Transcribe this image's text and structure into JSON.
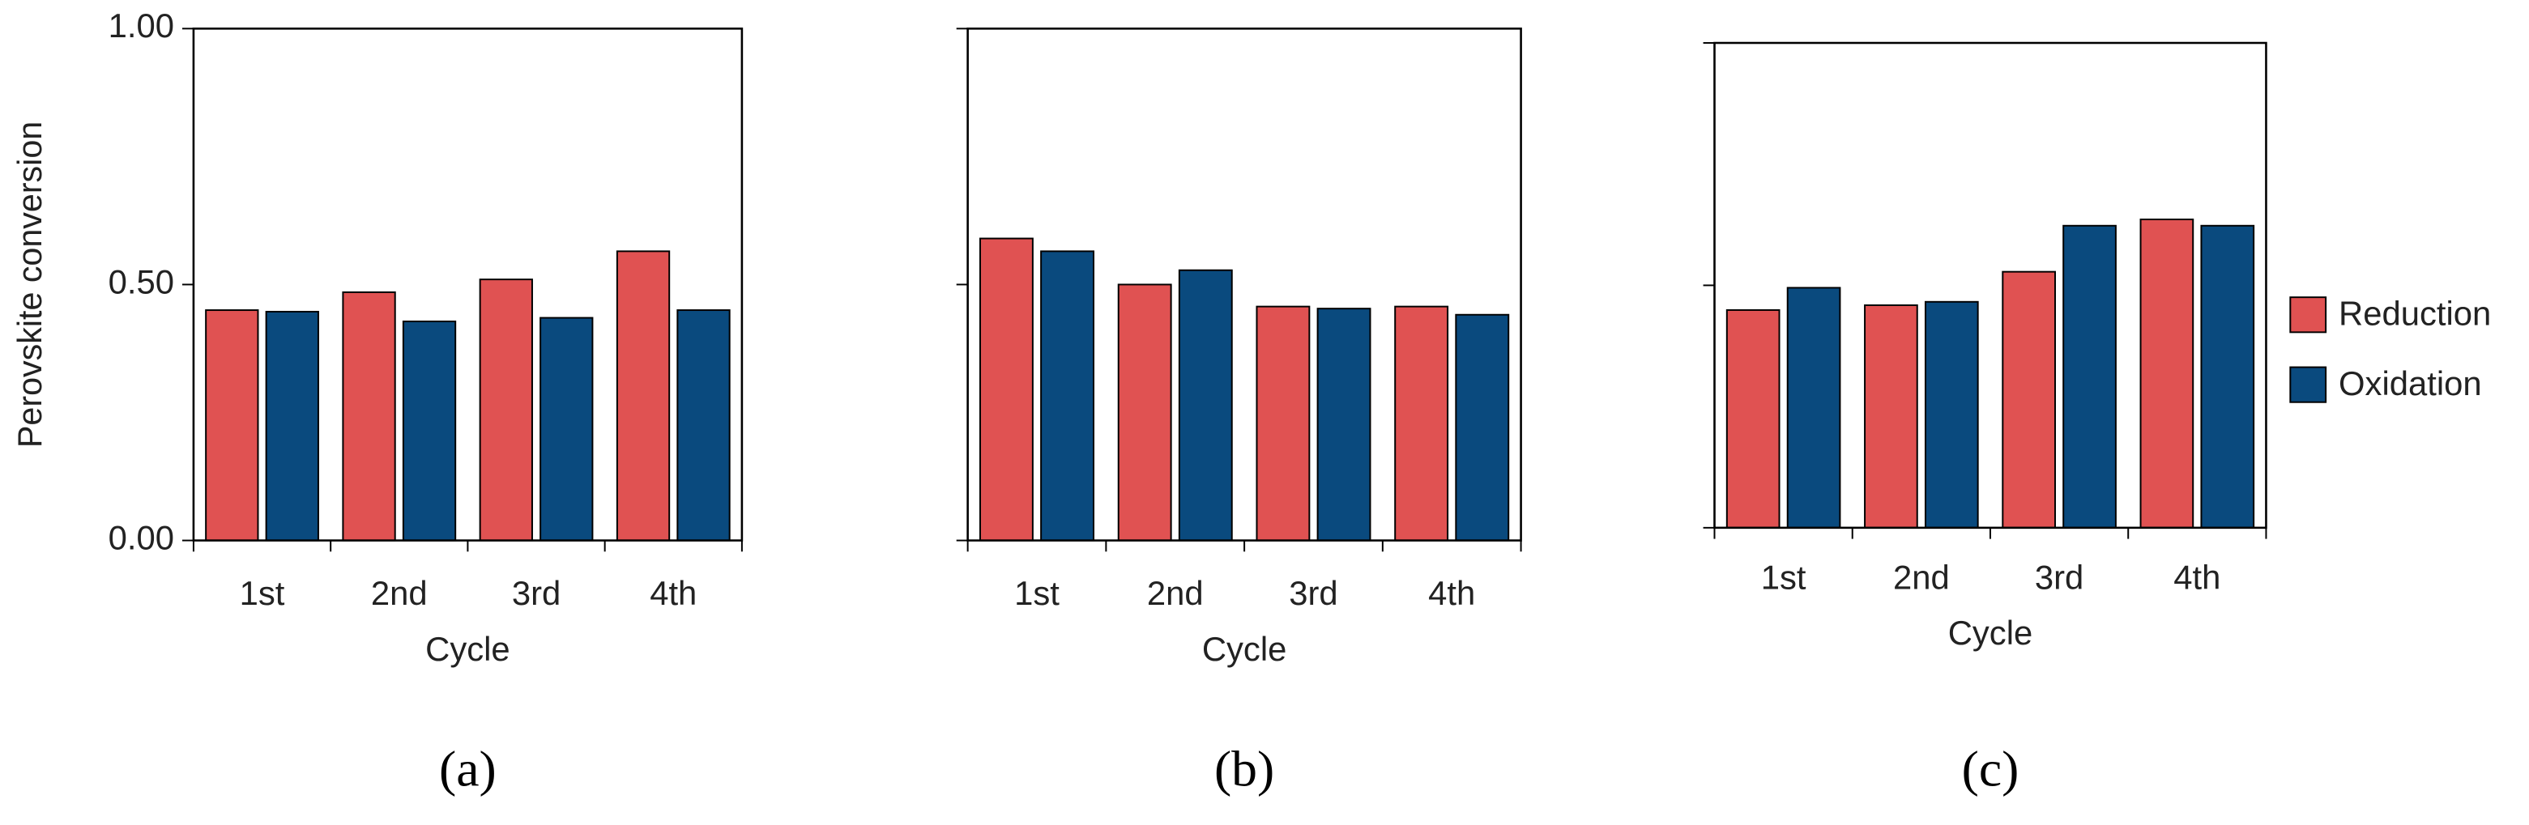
{
  "chart_data": [
    {
      "type": "bar",
      "panel_label": "(a)",
      "ylabel": "Perovskite conversion",
      "xlabel": "Cycle",
      "categories": [
        "1st",
        "2nd",
        "3rd",
        "4th"
      ],
      "series": [
        {
          "color": "#e05252",
          "values": [
            0.45,
            0.485,
            0.51,
            0.565
          ]
        },
        {
          "color": "#0a4a7e",
          "values": [
            0.447,
            0.428,
            0.435,
            0.45
          ]
        }
      ],
      "ylim": [
        0,
        1
      ],
      "yticks": [
        {
          "value": 0,
          "label": "0.00"
        },
        {
          "value": 0.5,
          "label": "0.50"
        },
        {
          "value": 1,
          "label": "1.00"
        }
      ]
    },
    {
      "type": "bar",
      "panel_label": "(b)",
      "xlabel": "Cycle",
      "categories": [
        "1st",
        "2nd",
        "3rd",
        "4th"
      ],
      "series": [
        {
          "color": "#e05252",
          "values": [
            0.59,
            0.5,
            0.457,
            0.457
          ]
        },
        {
          "color": "#0a4a7e",
          "values": [
            0.565,
            0.528,
            0.453,
            0.441
          ]
        }
      ],
      "ylim": [
        0,
        1
      ],
      "yticks": [
        0,
        0.5,
        1
      ],
      "ytick_labels": false
    },
    {
      "type": "bar",
      "panel_label": "(c)",
      "xlabel": "Cycle",
      "legend": "right",
      "categories": [
        "1st",
        "2nd",
        "3rd",
        "4th"
      ],
      "series": [
        {
          "name": "Reduction",
          "color": "#e05252",
          "values": [
            0.449,
            0.459,
            0.528,
            0.636
          ]
        },
        {
          "name": "Oxidation",
          "color": "#0a4a7e",
          "values": [
            0.495,
            0.466,
            0.623,
            0.623
          ]
        }
      ],
      "ylim": [
        0,
        1
      ],
      "yticks": [
        0,
        0.5,
        1
      ],
      "ytick_labels": false
    }
  ]
}
